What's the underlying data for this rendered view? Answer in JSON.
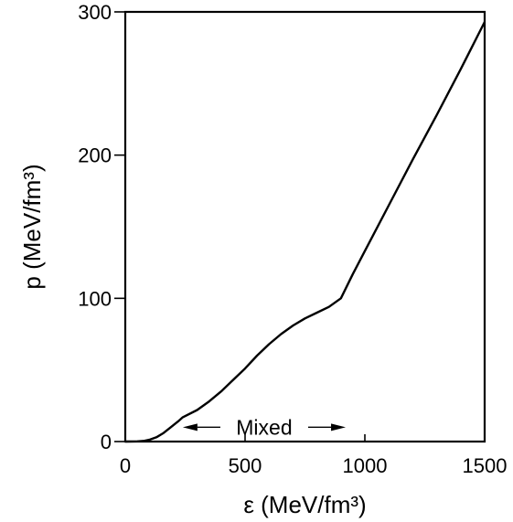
{
  "chart_data": {
    "type": "line",
    "xlabel": "ε (MeV/fm³)",
    "ylabel": "p (MeV/fm³)",
    "xlim": [
      0,
      1500
    ],
    "ylim": [
      0,
      300
    ],
    "x_ticks": [
      0,
      500,
      1000,
      1500
    ],
    "y_ticks": [
      0,
      100,
      200,
      300
    ],
    "grid": false,
    "series": [
      {
        "x": [
          0,
          50,
          80,
          100,
          130,
          160,
          190,
          220,
          240,
          300,
          350,
          400,
          450,
          500,
          550,
          600,
          650,
          700,
          750,
          800,
          850,
          900,
          950,
          1000,
          1100,
          1200,
          1300,
          1400,
          1500
        ],
        "y": [
          0,
          0.1,
          0.5,
          1.2,
          3,
          6,
          10,
          14,
          17,
          22,
          28,
          35,
          43,
          51,
          60,
          68,
          75,
          81,
          86,
          90,
          94,
          100,
          117,
          133,
          165,
          197,
          228,
          260,
          293
        ]
      }
    ],
    "annotations": [
      {
        "text": "Mixed",
        "x_start": 240,
        "x_end": 920,
        "y": 10
      }
    ]
  }
}
